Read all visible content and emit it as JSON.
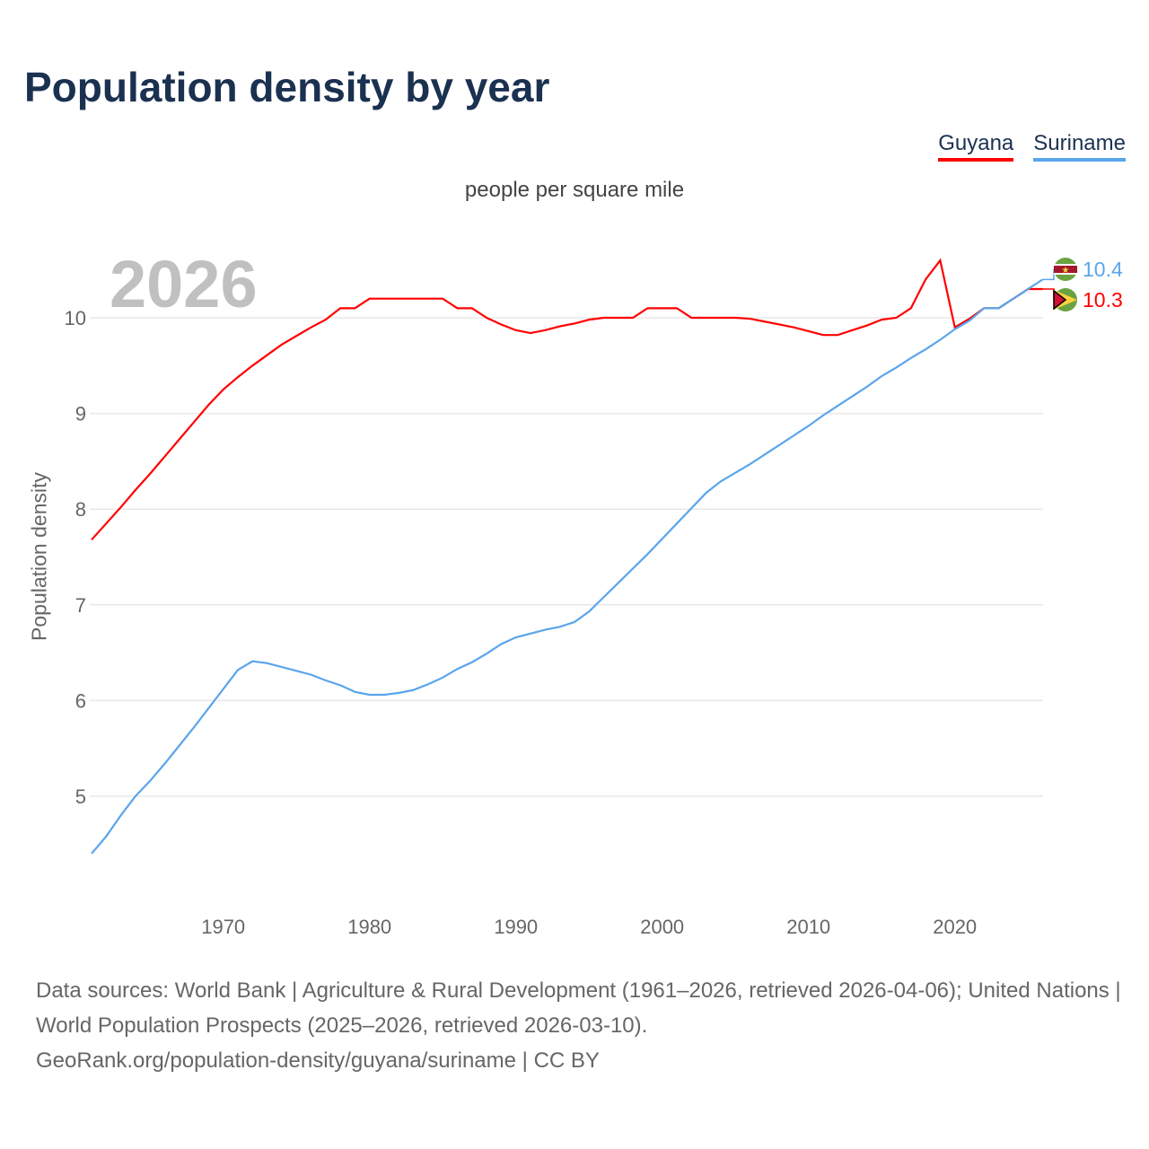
{
  "title": "Population density by year",
  "legend": [
    {
      "label": "Guyana",
      "color": "#ff0000"
    },
    {
      "label": "Suriname",
      "color": "#5aa5ec"
    }
  ],
  "subtitle": "people per square mile",
  "year_watermark": "2026",
  "source_lines": [
    "Data sources: World Bank | Agriculture & Rural Development (1961–2026, retrieved 2026-04-06); United Nations | World Population Prospects (2025–2026, retrieved 2026-03-10).",
    "GeoRank.org/population-density/guyana/suriname | CC BY"
  ],
  "chart_data": {
    "type": "line",
    "title": "Population density by year",
    "xlabel": "",
    "ylabel": "Population density",
    "xlim": [
      1961,
      2026
    ],
    "ylim": [
      4.4,
      10.6
    ],
    "xticks": [
      1970,
      1980,
      1990,
      2000,
      2010,
      2020
    ],
    "yticks": [
      5,
      6,
      7,
      8,
      9,
      10
    ],
    "grid": true,
    "legend_position": "top-right",
    "x_start": 1961,
    "series": [
      {
        "name": "Guyana",
        "color": "#ff0000",
        "end_label": "10.3",
        "values": [
          7.68,
          7.85,
          8.02,
          8.2,
          8.37,
          8.55,
          8.73,
          8.91,
          9.09,
          9.25,
          9.38,
          9.5,
          9.61,
          9.72,
          9.81,
          9.9,
          9.98,
          10.1,
          10.1,
          10.2,
          10.2,
          10.2,
          10.2,
          10.2,
          10.2,
          10.1,
          10.1,
          10.0,
          9.93,
          9.87,
          9.84,
          9.87,
          9.91,
          9.94,
          9.98,
          10.0,
          10.0,
          10.0,
          10.1,
          10.1,
          10.1,
          10.0,
          10.0,
          10.0,
          10.0,
          9.99,
          9.96,
          9.93,
          9.9,
          9.86,
          9.82,
          9.82,
          9.87,
          9.92,
          9.98,
          10.0,
          10.1,
          10.4,
          10.6,
          9.9,
          9.99,
          10.1,
          10.1,
          10.2,
          10.3,
          10.3
        ]
      },
      {
        "name": "Suriname",
        "color": "#5aa5ec",
        "end_label": "10.4",
        "values": [
          4.4,
          4.58,
          4.8,
          5.0,
          5.16,
          5.34,
          5.53,
          5.72,
          5.92,
          6.12,
          6.32,
          6.41,
          6.39,
          6.35,
          6.31,
          6.27,
          6.21,
          6.16,
          6.09,
          6.06,
          6.06,
          6.08,
          6.11,
          6.17,
          6.24,
          6.33,
          6.4,
          6.49,
          6.59,
          6.66,
          6.7,
          6.74,
          6.77,
          6.82,
          6.93,
          7.08,
          7.23,
          7.38,
          7.53,
          7.69,
          7.85,
          8.01,
          8.17,
          8.29,
          8.38,
          8.47,
          8.57,
          8.67,
          8.77,
          8.87,
          8.98,
          9.08,
          9.18,
          9.28,
          9.39,
          9.48,
          9.58,
          9.67,
          9.77,
          9.88,
          9.97,
          10.1,
          10.1,
          10.2,
          10.3,
          10.4
        ]
      }
    ]
  }
}
